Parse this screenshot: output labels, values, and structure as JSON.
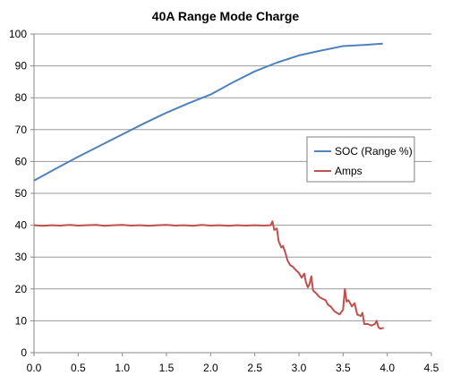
{
  "chart_data": {
    "type": "line",
    "title": "40A Range Mode Charge",
    "xlabel": "",
    "ylabel": "",
    "xlim": [
      0,
      4.5
    ],
    "ylim": [
      0,
      100
    ],
    "x_ticks": [
      "0.0",
      "0.5",
      "1.0",
      "1.5",
      "2.0",
      "2.5",
      "3.0",
      "3.5",
      "4.0",
      "4.5"
    ],
    "y_ticks": [
      "0",
      "10",
      "20",
      "30",
      "40",
      "50",
      "60",
      "70",
      "80",
      "90",
      "100"
    ],
    "grid": "horizontal",
    "legend_position": "right",
    "series": [
      {
        "name": "SOC (Range %)",
        "color": "#4f81bd",
        "points": [
          [
            0.0,
            54
          ],
          [
            0.25,
            57.8
          ],
          [
            0.5,
            61.5
          ],
          [
            0.75,
            65
          ],
          [
            1.0,
            68.5
          ],
          [
            1.25,
            72
          ],
          [
            1.5,
            75.3
          ],
          [
            1.75,
            78.3
          ],
          [
            2.0,
            81
          ],
          [
            2.25,
            84.8
          ],
          [
            2.5,
            88.3
          ],
          [
            2.75,
            91
          ],
          [
            3.0,
            93.3
          ],
          [
            3.25,
            94.8
          ],
          [
            3.5,
            96.2
          ],
          [
            3.75,
            96.6
          ],
          [
            3.95,
            97
          ]
        ]
      },
      {
        "name": "Amps",
        "color": "#c0504d",
        "points": [
          [
            0.0,
            40
          ],
          [
            0.1,
            39.8
          ],
          [
            0.2,
            40
          ],
          [
            0.3,
            39.9
          ],
          [
            0.4,
            40.1
          ],
          [
            0.5,
            39.9
          ],
          [
            0.6,
            40
          ],
          [
            0.7,
            40.1
          ],
          [
            0.8,
            39.8
          ],
          [
            0.9,
            40
          ],
          [
            1.0,
            40.1
          ],
          [
            1.1,
            39.9
          ],
          [
            1.2,
            40
          ],
          [
            1.3,
            39.8
          ],
          [
            1.4,
            40
          ],
          [
            1.5,
            40.1
          ],
          [
            1.6,
            39.9
          ],
          [
            1.7,
            40
          ],
          [
            1.8,
            39.8
          ],
          [
            1.9,
            40.1
          ],
          [
            2.0,
            39.9
          ],
          [
            2.1,
            40
          ],
          [
            2.2,
            39.8
          ],
          [
            2.3,
            40
          ],
          [
            2.4,
            39.9
          ],
          [
            2.5,
            40
          ],
          [
            2.6,
            39.9
          ],
          [
            2.68,
            40
          ],
          [
            2.7,
            41.2
          ],
          [
            2.72,
            38.5
          ],
          [
            2.75,
            39
          ],
          [
            2.77,
            35
          ],
          [
            2.8,
            33
          ],
          [
            2.82,
            33.5
          ],
          [
            2.85,
            31
          ],
          [
            2.87,
            29
          ],
          [
            2.9,
            27.5
          ],
          [
            2.93,
            27
          ],
          [
            2.96,
            26
          ],
          [
            3.0,
            25
          ],
          [
            3.03,
            23.5
          ],
          [
            3.06,
            24.8
          ],
          [
            3.08,
            22
          ],
          [
            3.1,
            20.5
          ],
          [
            3.12,
            21.5
          ],
          [
            3.14,
            24
          ],
          [
            3.16,
            19.5
          ],
          [
            3.2,
            18.5
          ],
          [
            3.23,
            17.5
          ],
          [
            3.26,
            17
          ],
          [
            3.3,
            16.5
          ],
          [
            3.33,
            15
          ],
          [
            3.36,
            14.5
          ],
          [
            3.4,
            13
          ],
          [
            3.43,
            12.5
          ],
          [
            3.46,
            12
          ],
          [
            3.5,
            13.5
          ],
          [
            3.52,
            20
          ],
          [
            3.54,
            16
          ],
          [
            3.56,
            16.5
          ],
          [
            3.6,
            14.5
          ],
          [
            3.63,
            15.5
          ],
          [
            3.66,
            12
          ],
          [
            3.7,
            11.5
          ],
          [
            3.72,
            12.5
          ],
          [
            3.74,
            9
          ],
          [
            3.78,
            9
          ],
          [
            3.82,
            8.5
          ],
          [
            3.86,
            9
          ],
          [
            3.88,
            10
          ],
          [
            3.9,
            8
          ],
          [
            3.92,
            7.5
          ],
          [
            3.96,
            7.8
          ]
        ]
      }
    ]
  }
}
